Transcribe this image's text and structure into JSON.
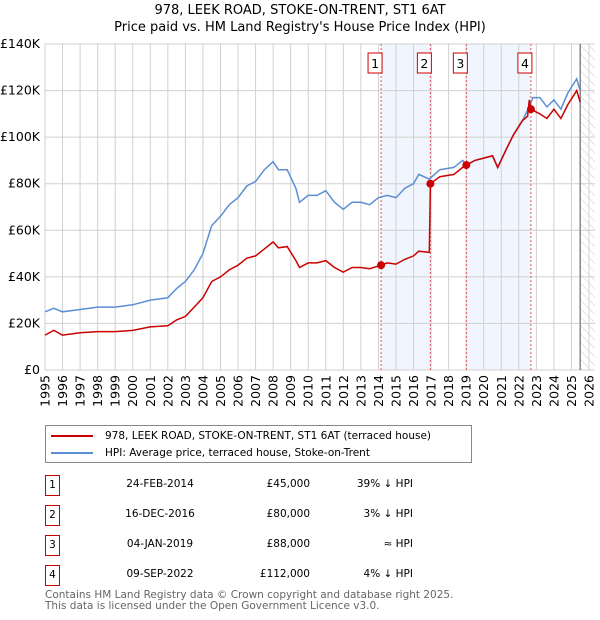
{
  "chart_data": {
    "type": "line",
    "title": "978, LEEK ROAD, STOKE-ON-TRENT, ST1 6AT",
    "subtitle": "Price paid vs. HM Land Registry's House Price Index (HPI)",
    "xlim": [
      1995,
      2026
    ],
    "ylim": [
      0,
      140000
    ],
    "x_ticks": [
      "1995",
      "1996",
      "1997",
      "1998",
      "1999",
      "2000",
      "2001",
      "2002",
      "2003",
      "2004",
      "2005",
      "2006",
      "2007",
      "2008",
      "2009",
      "2010",
      "2011",
      "2012",
      "2013",
      "2014",
      "2015",
      "2016",
      "2017",
      "2018",
      "2019",
      "2020",
      "2021",
      "2022",
      "2023",
      "2024",
      "2025",
      "2026"
    ],
    "y_ticks": [
      {
        "v": 0,
        "label": "£0"
      },
      {
        "v": 20000,
        "label": "£20K"
      },
      {
        "v": 40000,
        "label": "£40K"
      },
      {
        "v": 60000,
        "label": "£60K"
      },
      {
        "v": 80000,
        "label": "£80K"
      },
      {
        "v": 100000,
        "label": "£100K"
      },
      {
        "v": 120000,
        "label": "£120K"
      },
      {
        "v": 140000,
        "label": "£140K"
      }
    ],
    "grid": true,
    "shaded_ranges": [
      [
        2014.15,
        2016.96
      ],
      [
        2019.01,
        2022.69
      ]
    ],
    "projection_start": 2025.5,
    "series": [
      {
        "name": "978, LEEK ROAD, STOKE-ON-TRENT, ST1 6AT (terraced house)",
        "color": "#cc0000",
        "x": [
          1995,
          1995.5,
          1996,
          1997,
          1998,
          1999,
          2000,
          2001,
          2002,
          2002.5,
          2003,
          2003.5,
          2004,
          2004.5,
          2005,
          2005.5,
          2006,
          2006.5,
          2007,
          2007.5,
          2008,
          2008.3,
          2008.8,
          2009.3,
          2009.5,
          2010,
          2010.5,
          2011,
          2011.5,
          2012,
          2012.5,
          2013,
          2013.5,
          2014.15,
          2014.5,
          2015,
          2015.5,
          2016,
          2016.3,
          2016.9,
          2016.96,
          2017.5,
          2018.3,
          2018.8,
          2019.01,
          2019.5,
          2020,
          2020.5,
          2020.8,
          2021.3,
          2021.7,
          2022.2,
          2022.5,
          2022.6,
          2022.69,
          2023.2,
          2023.6,
          2024,
          2024.4,
          2024.8,
          2025.3,
          2025.5
        ],
        "y": [
          15000,
          17000,
          15000,
          16000,
          16500,
          16500,
          17000,
          18500,
          19000,
          21500,
          23000,
          27000,
          31000,
          38000,
          40000,
          43000,
          45000,
          48000,
          49000,
          52000,
          55000,
          52500,
          53000,
          47000,
          44000,
          46000,
          46000,
          47000,
          44000,
          42000,
          44000,
          44000,
          43500,
          45000,
          46000,
          45500,
          47500,
          49000,
          51000,
          50500,
          80000,
          83000,
          84000,
          87000,
          88000,
          90000,
          91000,
          92000,
          87000,
          95000,
          101000,
          107000,
          109000,
          116000,
          112000,
          110000,
          108000,
          112000,
          108000,
          114000,
          120000,
          115000
        ]
      },
      {
        "name": "HPI: Average price, terraced house, Stoke-on-Trent",
        "color": "#5b8fd4",
        "x": [
          1995,
          1995.5,
          1996,
          1997,
          1998,
          1999,
          2000,
          2001,
          2002,
          2002.5,
          2003,
          2003.5,
          2004,
          2004.5,
          2005,
          2005.5,
          2006,
          2006.5,
          2007,
          2007.5,
          2008,
          2008.3,
          2008.8,
          2009.3,
          2009.5,
          2010,
          2010.5,
          2011,
          2011.5,
          2012,
          2012.5,
          2013,
          2013.5,
          2014,
          2014.5,
          2015,
          2015.5,
          2016,
          2016.3,
          2016.9,
          2017.5,
          2018.3,
          2018.8,
          2019,
          2019.5,
          2020,
          2020.5,
          2020.8,
          2021.3,
          2021.7,
          2022.2,
          2022.6,
          2022.8,
          2023.2,
          2023.6,
          2024,
          2024.4,
          2024.8,
          2025.3,
          2025.5
        ],
        "y": [
          25000,
          26500,
          25000,
          26000,
          27000,
          27000,
          28000,
          30000,
          31000,
          35000,
          38000,
          43000,
          50000,
          62000,
          66000,
          71000,
          74000,
          79000,
          81000,
          86000,
          89500,
          86000,
          86000,
          78000,
          72000,
          75000,
          75000,
          77000,
          72000,
          69000,
          72000,
          72000,
          71000,
          74000,
          75000,
          74000,
          78000,
          80000,
          84000,
          82000,
          86000,
          87000,
          90000,
          88000,
          90000,
          91000,
          92000,
          87000,
          95000,
          101000,
          107000,
          113000,
          117000,
          117000,
          113000,
          116000,
          112000,
          119000,
          125000,
          120000
        ]
      }
    ],
    "sales": [
      {
        "id": "1",
        "x": 2014.15,
        "date": "24-FEB-2014",
        "price_value": 45000,
        "price": "£45,000",
        "rel": "39% ↓ HPI"
      },
      {
        "id": "2",
        "x": 2016.96,
        "date": "16-DEC-2016",
        "price_value": 80000,
        "price": "£80,000",
        "rel": "3% ↓ HPI"
      },
      {
        "id": "3",
        "x": 2019.01,
        "date": "04-JAN-2019",
        "price_value": 88000,
        "price": "£88,000",
        "rel": "≈ HPI"
      },
      {
        "id": "4",
        "x": 2022.69,
        "date": "09-SEP-2022",
        "price_value": 112000,
        "price": "£112,000",
        "rel": "4% ↓ HPI"
      }
    ]
  },
  "legend": {
    "red": "978, LEEK ROAD, STOKE-ON-TRENT, ST1 6AT (terraced house)",
    "blue": "HPI: Average price, terraced house, Stoke-on-Trent"
  },
  "footer": {
    "line1": "Contains HM Land Registry data © Crown copyright and database right 2025.",
    "line2": "This data is licensed under the Open Government Licence v3.0."
  }
}
